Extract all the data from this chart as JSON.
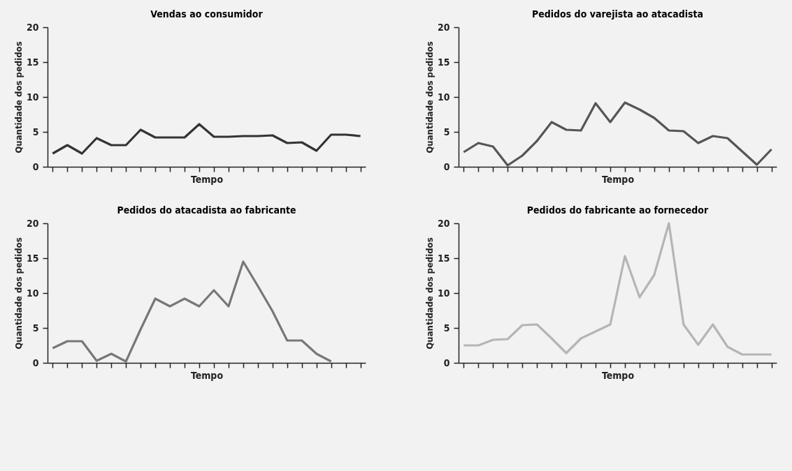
{
  "chart_data": [
    {
      "type": "line",
      "title": "Vendas ao consumidor",
      "xlabel": "Tempo",
      "ylabel": "Quantidade dos pedidos",
      "categories": [
        null,
        null,
        null,
        null,
        null,
        null,
        null,
        null,
        null,
        null,
        null,
        null,
        null,
        null,
        null,
        null,
        null,
        null,
        null,
        null,
        null,
        null
      ],
      "series": [
        {
          "color": "#333333",
          "values": [
            1.9,
            3.1,
            1.9,
            4.1,
            3.1,
            3.1,
            5.3,
            4.2,
            4.2,
            4.2,
            6.1,
            4.3,
            4.3,
            4.4,
            4.4,
            4.5,
            3.4,
            3.5,
            2.3,
            4.6,
            4.6,
            4.4
          ]
        }
      ],
      "ylim": [
        0,
        20
      ],
      "yticks": [
        0,
        5,
        10,
        15,
        20
      ],
      "tick_labels": "y",
      "grid": false
    },
    {
      "type": "line",
      "title": "Pedidos do varejista ao atacadista",
      "xlabel": "Tempo",
      "ylabel": "Quantidade dos pedidos",
      "categories": [
        null,
        null,
        null,
        null,
        null,
        null,
        null,
        null,
        null,
        null,
        null,
        null,
        null,
        null,
        null,
        null,
        null,
        null,
        null,
        null,
        null,
        null
      ],
      "series": [
        {
          "color": "#555555",
          "values": [
            2.1,
            3.4,
            2.9,
            0.2,
            1.6,
            3.7,
            6.4,
            5.3,
            5.2,
            9.1,
            6.4,
            9.2,
            8.2,
            7.0,
            5.2,
            5.1,
            3.4,
            4.4,
            4.1,
            2.2,
            0.3,
            2.5
          ]
        }
      ],
      "ylim": [
        0,
        20
      ],
      "yticks": [
        0,
        5,
        10,
        15,
        20
      ],
      "tick_labels": "y",
      "grid": false
    },
    {
      "type": "line",
      "title": "Pedidos do atacadista ao fabricante",
      "xlabel": "Tempo",
      "ylabel": "Quantidade dos pedidos",
      "categories": [
        null,
        null,
        null,
        null,
        null,
        null,
        null,
        null,
        null,
        null,
        null,
        null,
        null,
        null,
        null,
        null,
        null,
        null,
        null,
        null,
        null,
        null
      ],
      "series": [
        {
          "color": "#777777",
          "values": [
            2.1,
            3.1,
            3.1,
            0.3,
            1.3,
            0.2,
            4.8,
            9.2,
            8.1,
            9.2,
            8.1,
            10.4,
            8.1,
            14.5,
            11.0,
            7.4,
            3.2,
            3.2,
            1.3,
            0.2,
            null,
            null
          ]
        }
      ],
      "ylim": [
        0,
        20
      ],
      "yticks": [
        0,
        5,
        10,
        15,
        20
      ],
      "tick_labels": "y",
      "grid": false
    },
    {
      "type": "line",
      "title": "Pedidos do fabricante ao fornecedor",
      "xlabel": "Tempo",
      "ylabel": "Quantidade dos pedidos",
      "categories": [
        null,
        null,
        null,
        null,
        null,
        null,
        null,
        null,
        null,
        null,
        null,
        null,
        null,
        null,
        null,
        null,
        null,
        null,
        null,
        null,
        null,
        null
      ],
      "series": [
        {
          "color": "#b5b5b5",
          "values": [
            2.5,
            2.5,
            3.3,
            3.4,
            5.4,
            5.5,
            3.5,
            1.4,
            3.5,
            4.5,
            5.5,
            15.3,
            9.4,
            12.6,
            20,
            5.5,
            2.6,
            5.5,
            2.3,
            1.2,
            1.2,
            1.2
          ]
        }
      ],
      "ylim": [
        0,
        20
      ],
      "yticks": [
        0,
        5,
        10,
        15,
        20
      ],
      "tick_labels": "y",
      "grid": false
    }
  ]
}
